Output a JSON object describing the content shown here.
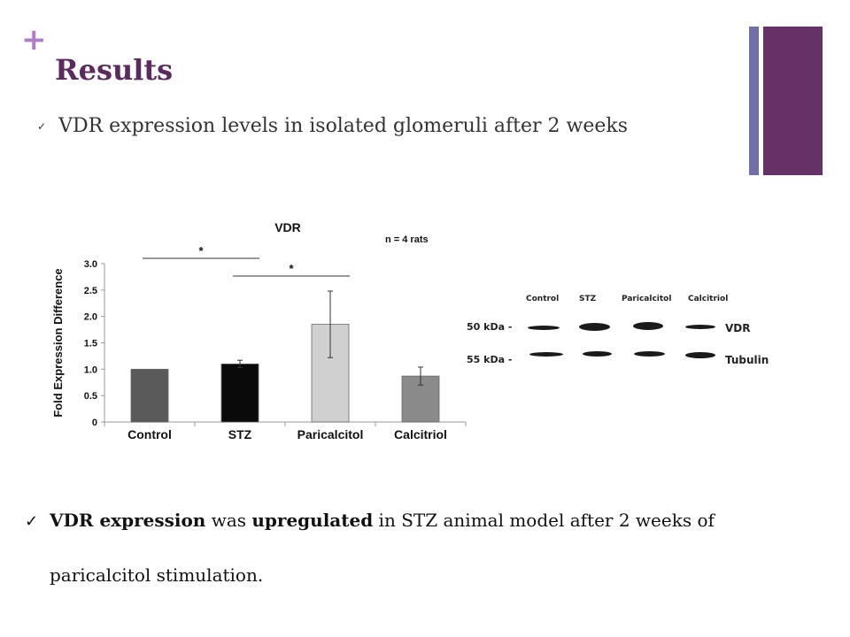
{
  "slide": {
    "plus": "+",
    "title": "Results",
    "bullet1": "VDR expression levels in isolated glomeruli after 2 weeks",
    "checkmark": "✓",
    "bottom": {
      "part1": "VDR expression",
      "part2": " was ",
      "part3": "upregulated",
      "part4": " in STZ animal model after 2 weeks of",
      "line2": "paricalcitol stimulation."
    }
  },
  "chart_data": {
    "type": "bar",
    "title": "VDR",
    "annotation": "n = 4 rats",
    "ylabel": "Fold Expression Difference",
    "xlabel": "",
    "categories": [
      "Control",
      "STZ",
      "Paricalcitol",
      "Calcitriol"
    ],
    "values": [
      1.0,
      1.1,
      1.85,
      0.87
    ],
    "errors": [
      0.01,
      0.07,
      0.63,
      0.17
    ],
    "ylim": [
      0,
      3.0
    ],
    "yticks": [
      "0",
      "0.5",
      "1.0",
      "1.5",
      "2.0",
      "2.5",
      "3.0"
    ],
    "bar_colors": [
      "#5a5a5a",
      "#0a0a0a",
      "#d0d0d0",
      "#8a8a8a"
    ],
    "significance": [
      {
        "from": "Control",
        "to": "STZ",
        "label": "*"
      },
      {
        "from": "STZ",
        "to": "Paricalcitol",
        "label": "*"
      }
    ],
    "grid": false
  },
  "blot": {
    "lanes": [
      "Control",
      "STZ",
      "Paricalcitol",
      "Calcitriol"
    ],
    "rows": [
      {
        "kda": "50 kDa -",
        "protein": "VDR"
      },
      {
        "kda": "55 kDa -",
        "protein": "Tubulin"
      }
    ]
  }
}
